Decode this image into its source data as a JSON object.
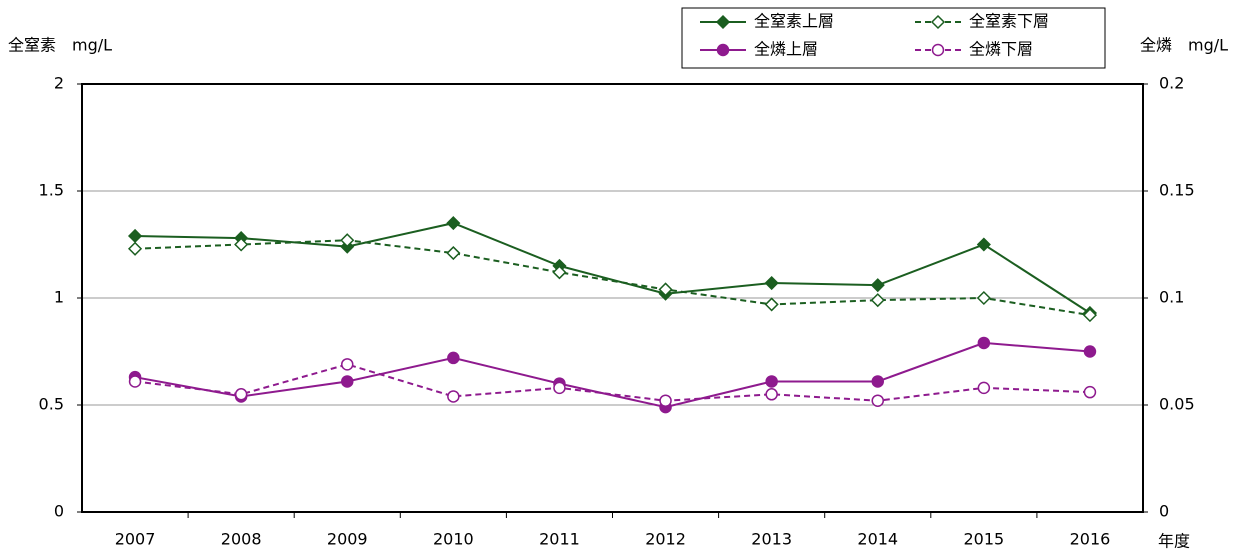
{
  "chart_data": {
    "type": "line",
    "y_label": "全窒素　mg/L",
    "y2_label": "全燐　mg/L",
    "x_label": "年度",
    "categories": [
      "2007",
      "2008",
      "2009",
      "2010",
      "2011",
      "2012",
      "2013",
      "2014",
      "2015",
      "2016"
    ],
    "ylim": [
      0,
      2
    ],
    "yticks": [
      0,
      0.5,
      1,
      1.5,
      2
    ],
    "y2lim": [
      0,
      0.2
    ],
    "y2ticks": [
      0,
      0.05,
      0.1,
      0.15,
      0.2
    ],
    "grid": true,
    "legend": "top-right",
    "series": [
      {
        "name": "全窒素上層",
        "color": "#1b5e20",
        "style": "solid",
        "marker": "diamond",
        "filled": true,
        "values": [
          1.29,
          1.28,
          1.24,
          1.35,
          1.15,
          1.02,
          1.07,
          1.06,
          1.25,
          0.93
        ]
      },
      {
        "name": "全窒素下層",
        "color": "#1b5e20",
        "style": "dashed",
        "marker": "diamond",
        "filled": false,
        "values": [
          1.23,
          1.25,
          1.27,
          1.21,
          1.12,
          1.04,
          0.97,
          0.99,
          1.0,
          0.92
        ]
      },
      {
        "name": "全燐上層",
        "color": "#8e1a8e",
        "style": "solid",
        "marker": "circle",
        "filled": true,
        "axis": "y2",
        "values": [
          0.063,
          0.054,
          0.061,
          0.072,
          0.06,
          0.049,
          0.061,
          0.061,
          0.079,
          0.075
        ]
      },
      {
        "name": "全燐下層",
        "color": "#8e1a8e",
        "style": "dashed",
        "marker": "circle",
        "filled": false,
        "axis": "y2",
        "values": [
          0.061,
          0.055,
          0.069,
          0.054,
          0.058,
          0.052,
          0.055,
          0.052,
          0.058,
          0.056
        ]
      }
    ]
  }
}
